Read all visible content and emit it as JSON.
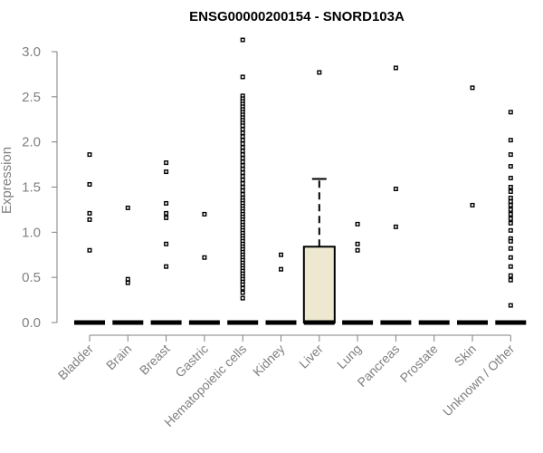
{
  "chart_data": {
    "type": "box",
    "title": "ENSG00000200154 - SNORD103A",
    "xlabel": "",
    "ylabel": "Expression",
    "ylim": [
      0,
      3.1
    ],
    "yticks": [
      "0.0",
      "0.5",
      "1.0",
      "1.5",
      "2.0",
      "2.5",
      "3.0"
    ],
    "ytick_values": [
      0,
      0.5,
      1.0,
      1.5,
      2.0,
      2.5,
      3.0
    ],
    "box_fill": "#ede8cf",
    "categories": [
      "Bladder",
      "Brain",
      "Breast",
      "Gastric",
      "Hematopoietic cells",
      "Kidney",
      "Liver",
      "Lung",
      "Pancreas",
      "Prostate",
      "Skin",
      "Unknown / Other"
    ],
    "series": [
      {
        "name": "Bladder",
        "q1": 0,
        "median": 0,
        "q3": 0,
        "whisker_low": 0,
        "whisker_high": 0,
        "outliers": [
          1.86,
          1.53,
          1.21,
          1.14,
          0.8
        ]
      },
      {
        "name": "Brain",
        "q1": 0,
        "median": 0,
        "q3": 0,
        "whisker_low": 0,
        "whisker_high": 0,
        "outliers": [
          1.27,
          0.48,
          0.44
        ]
      },
      {
        "name": "Breast",
        "q1": 0,
        "median": 0,
        "q3": 0,
        "whisker_low": 0,
        "whisker_high": 0,
        "outliers": [
          1.77,
          1.67,
          1.32,
          1.21,
          1.16,
          0.87,
          0.62
        ]
      },
      {
        "name": "Gastric",
        "q1": 0,
        "median": 0,
        "q3": 0,
        "whisker_low": 0,
        "whisker_high": 0,
        "outliers": [
          1.2,
          0.72
        ]
      },
      {
        "name": "Hematopoietic cells",
        "q1": 0,
        "median": 0,
        "q3": 0,
        "whisker_low": 0,
        "whisker_high": 0,
        "outliers": [
          3.13,
          2.72,
          2.51,
          2.48,
          2.45,
          2.42,
          2.39,
          2.36,
          2.33,
          2.3,
          2.27,
          2.24,
          2.21,
          2.18,
          2.14,
          2.1,
          2.06,
          2.02,
          1.98,
          1.94,
          1.9,
          1.86,
          1.82,
          1.78,
          1.74,
          1.7,
          1.66,
          1.62,
          1.58,
          1.54,
          1.5,
          1.46,
          1.42,
          1.38,
          1.35,
          1.32,
          1.29,
          1.26,
          1.23,
          1.2,
          1.17,
          1.14,
          1.11,
          1.08,
          1.05,
          1.02,
          0.99,
          0.96,
          0.93,
          0.9,
          0.87,
          0.84,
          0.81,
          0.78,
          0.75,
          0.72,
          0.69,
          0.66,
          0.63,
          0.6,
          0.57,
          0.54,
          0.51,
          0.48,
          0.45,
          0.42,
          0.38,
          0.33,
          0.27
        ]
      },
      {
        "name": "Kidney",
        "q1": 0,
        "median": 0,
        "q3": 0,
        "whisker_low": 0,
        "whisker_high": 0,
        "outliers": [
          0.75,
          0.59
        ]
      },
      {
        "name": "Liver",
        "q1": 0,
        "median": 0,
        "q3": 0.84,
        "whisker_low": 0,
        "whisker_high": 1.59,
        "outliers": [
          2.77
        ]
      },
      {
        "name": "Lung",
        "q1": 0,
        "median": 0,
        "q3": 0,
        "whisker_low": 0,
        "whisker_high": 0,
        "outliers": [
          1.09,
          0.87,
          0.8
        ]
      },
      {
        "name": "Pancreas",
        "q1": 0,
        "median": 0,
        "q3": 0,
        "whisker_low": 0,
        "whisker_high": 0,
        "outliers": [
          2.82,
          1.48,
          1.06
        ]
      },
      {
        "name": "Prostate",
        "q1": 0,
        "median": 0,
        "q3": 0,
        "whisker_low": 0,
        "whisker_high": 0,
        "outliers": []
      },
      {
        "name": "Skin",
        "q1": 0,
        "median": 0,
        "q3": 0,
        "whisker_low": 0,
        "whisker_high": 0,
        "outliers": [
          2.6,
          1.3
        ]
      },
      {
        "name": "Unknown / Other",
        "q1": 0,
        "median": 0,
        "q3": 0,
        "whisker_low": 0,
        "whisker_high": 0,
        "outliers": [
          2.33,
          2.02,
          1.86,
          1.73,
          1.6,
          1.5,
          1.45,
          1.38,
          1.34,
          1.3,
          1.25,
          1.2,
          1.15,
          1.1,
          1.02,
          0.93,
          0.9,
          0.82,
          0.72,
          0.62,
          0.52,
          0.47,
          0.19
        ]
      }
    ]
  }
}
